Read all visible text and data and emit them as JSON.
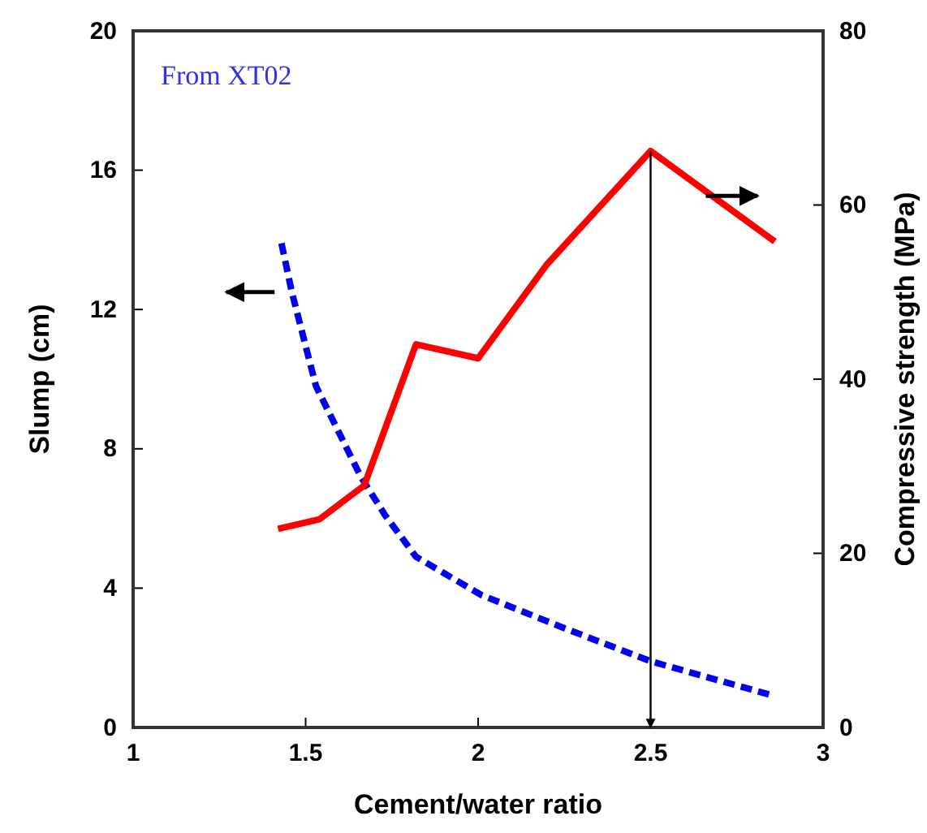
{
  "chart_data": {
    "type": "line",
    "xlabel": "Cement/water ratio",
    "ylabel": "Slump (cm)",
    "y2label": "Compressive strength (MPa)",
    "annotations": [
      "From XT02"
    ],
    "xlim": [
      1,
      3
    ],
    "xticks": [
      1,
      1.5,
      2,
      2.5,
      3
    ],
    "ylim": [
      0,
      20
    ],
    "yticks": [
      0,
      4,
      8,
      12,
      16,
      20
    ],
    "y2lim": [
      0,
      80
    ],
    "y2ticks": [
      0,
      20,
      40,
      60,
      80
    ],
    "series": [
      {
        "color": "#0000ee",
        "line_style": "dashed",
        "axis": "y",
        "x": [
          1.43,
          1.46,
          1.53,
          1.59,
          1.66,
          1.73,
          1.82,
          2.01,
          2.25,
          2.5,
          2.86
        ],
        "values": [
          13.9,
          12.5,
          9.8,
          8.6,
          7.2,
          6.1,
          4.9,
          3.8,
          2.85,
          1.9,
          0.9
        ]
      },
      {
        "color": "#ff0000",
        "line_style": "solid",
        "axis": "y2",
        "x": [
          1.42,
          1.54,
          1.67,
          1.82,
          2.0,
          2.2,
          2.5,
          2.86
        ],
        "values": [
          22.8,
          23.9,
          27.8,
          44,
          42.4,
          53.2,
          66.2,
          55.8
        ]
      }
    ]
  }
}
